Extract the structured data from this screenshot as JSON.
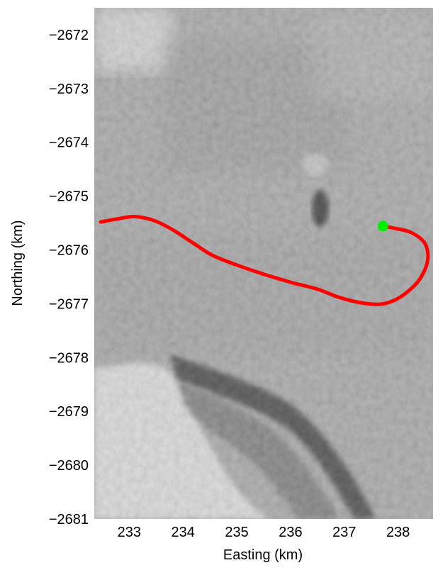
{
  "chart_data": {
    "type": "scatter",
    "title": "",
    "xlabel": "Easting (km)",
    "ylabel": "Northing (km)",
    "xlim": [
      232.35,
      238.65
    ],
    "ylim": [
      -2681.0,
      -2671.5
    ],
    "x_ticks": [
      {
        "value": 233,
        "label": "233"
      },
      {
        "value": 234,
        "label": "234"
      },
      {
        "value": 235,
        "label": "235"
      },
      {
        "value": 236,
        "label": "236"
      },
      {
        "value": 237,
        "label": "237"
      },
      {
        "value": 238,
        "label": "238"
      }
    ],
    "y_ticks": [
      {
        "value": -2672,
        "label": "−2672"
      },
      {
        "value": -2673,
        "label": "−2673"
      },
      {
        "value": -2674,
        "label": "−2674"
      },
      {
        "value": -2675,
        "label": "−2675"
      },
      {
        "value": -2676,
        "label": "−2676"
      },
      {
        "value": -2677,
        "label": "−2677"
      },
      {
        "value": -2678,
        "label": "−2678"
      },
      {
        "value": -2679,
        "label": "−2679"
      },
      {
        "value": -2680,
        "label": "−2680"
      },
      {
        "value": -2681,
        "label": "−2681"
      }
    ],
    "background": "grayscale satellite image",
    "grid": false,
    "series": [
      {
        "kind": "line",
        "color": "#ff0000",
        "points": [
          [
            232.47,
            -2675.48
          ],
          [
            232.8,
            -2675.42
          ],
          [
            233.1,
            -2675.38
          ],
          [
            233.45,
            -2675.45
          ],
          [
            233.8,
            -2675.62
          ],
          [
            234.2,
            -2675.88
          ],
          [
            234.55,
            -2676.1
          ],
          [
            235.0,
            -2676.28
          ],
          [
            235.5,
            -2676.45
          ],
          [
            236.0,
            -2676.6
          ],
          [
            236.5,
            -2676.73
          ],
          [
            236.9,
            -2676.88
          ],
          [
            237.3,
            -2676.98
          ],
          [
            237.65,
            -2677.01
          ],
          [
            237.9,
            -2676.95
          ],
          [
            238.15,
            -2676.8
          ],
          [
            238.4,
            -2676.55
          ],
          [
            238.55,
            -2676.2
          ],
          [
            238.5,
            -2675.88
          ],
          [
            238.25,
            -2675.68
          ],
          [
            237.95,
            -2675.6
          ],
          [
            237.72,
            -2675.56
          ]
        ]
      },
      {
        "kind": "marker",
        "color": "#00ee00",
        "points": [
          [
            237.72,
            -2675.56
          ]
        ]
      }
    ]
  }
}
